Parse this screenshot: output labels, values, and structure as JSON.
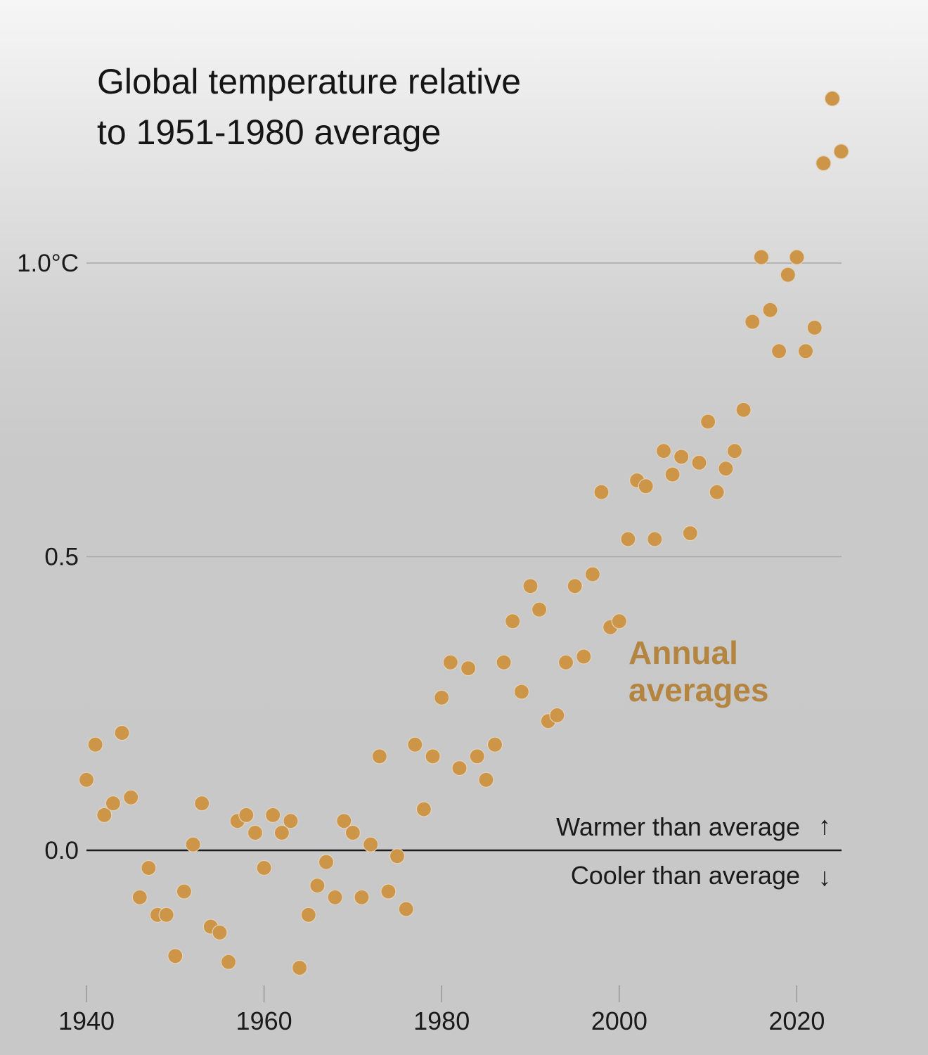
{
  "chart_data": {
    "type": "scatter",
    "title": "Global temperature relative to 1951-1980 average",
    "title_lines": [
      "Global temperature relative",
      "to 1951-1980 average"
    ],
    "xlabel": "",
    "ylabel": "",
    "xlim": [
      1940,
      2025
    ],
    "ylim": [
      -0.22,
      1.3
    ],
    "grid": true,
    "x_ticks": [
      1940,
      1960,
      1980,
      2000,
      2020
    ],
    "x_tick_labels": [
      "1940",
      "1960",
      "1980",
      "2000",
      "2020"
    ],
    "y_ticks": [
      0.0,
      0.5,
      1.0
    ],
    "y_tick_labels": [
      "0.0",
      "0.5",
      "1.0°C"
    ],
    "baseline_annotations": {
      "above": "Warmer than average",
      "above_arrow": "↑",
      "below": "Cooler than average",
      "below_arrow": "↓"
    },
    "series": [
      {
        "name": "Annual averages",
        "label_lines": [
          "Annual",
          "averages"
        ],
        "color": "#cc9548",
        "x": [
          1940,
          1941,
          1942,
          1943,
          1944,
          1945,
          1946,
          1947,
          1948,
          1949,
          1950,
          1951,
          1952,
          1953,
          1954,
          1955,
          1956,
          1957,
          1958,
          1959,
          1960,
          1961,
          1962,
          1963,
          1964,
          1965,
          1966,
          1967,
          1968,
          1969,
          1970,
          1971,
          1972,
          1973,
          1974,
          1975,
          1976,
          1977,
          1978,
          1979,
          1980,
          1981,
          1982,
          1983,
          1984,
          1985,
          1986,
          1987,
          1988,
          1989,
          1990,
          1991,
          1992,
          1993,
          1994,
          1995,
          1996,
          1997,
          1998,
          1999,
          2000,
          2001,
          2002,
          2003,
          2004,
          2005,
          2006,
          2007,
          2008,
          2009,
          2010,
          2011,
          2012,
          2013,
          2014,
          2015,
          2016,
          2017,
          2018,
          2019,
          2020,
          2021,
          2022,
          2023,
          2024,
          2025
        ],
        "y": [
          0.12,
          0.18,
          0.06,
          0.08,
          0.2,
          0.09,
          -0.08,
          -0.03,
          -0.11,
          -0.11,
          -0.18,
          -0.07,
          0.01,
          0.08,
          -0.13,
          -0.14,
          -0.19,
          0.05,
          0.06,
          0.03,
          -0.03,
          0.06,
          0.03,
          0.05,
          -0.2,
          -0.11,
          -0.06,
          -0.02,
          -0.08,
          0.05,
          0.03,
          -0.08,
          0.01,
          0.16,
          -0.07,
          -0.01,
          -0.1,
          0.18,
          0.07,
          0.16,
          0.26,
          0.32,
          0.14,
          0.31,
          0.16,
          0.12,
          0.18,
          0.32,
          0.39,
          0.27,
          0.45,
          0.41,
          0.22,
          0.23,
          0.32,
          0.45,
          0.33,
          0.47,
          0.61,
          0.38,
          0.39,
          0.53,
          0.63,
          0.62,
          0.53,
          0.68,
          0.64,
          0.67,
          0.54,
          0.66,
          0.73,
          0.61,
          0.65,
          0.68,
          0.75,
          0.9,
          1.01,
          0.92,
          0.85,
          0.98,
          1.01,
          0.85,
          0.89,
          1.17,
          1.28,
          1.19
        ]
      }
    ]
  }
}
